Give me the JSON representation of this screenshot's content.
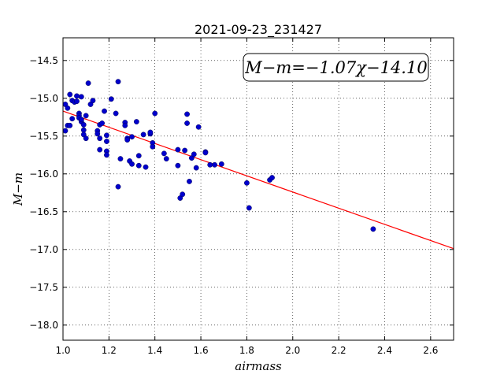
{
  "chart_data": {
    "type": "scatter",
    "title": "2021-09-23_231427",
    "xlabel": "airmass",
    "ylabel": "M−m",
    "xlim": [
      1.0,
      2.7
    ],
    "ylim": [
      -18.2,
      -14.2
    ],
    "y_inverted": true,
    "grid": true,
    "xticks": [
      "1.0",
      "1.2",
      "1.4",
      "1.6",
      "1.8",
      "2.0",
      "2.2",
      "2.4",
      "2.6"
    ],
    "yticks": [
      "−14.5",
      "−15.0",
      "−15.5",
      "−16.0",
      "−16.5",
      "−17.0",
      "−17.5",
      "−18.0"
    ],
    "annotation": "M−m=−1.07χ−14.10",
    "fit": {
      "slope": -1.07,
      "intercept": -14.1,
      "color": "#ff0000",
      "x_range": [
        1.0,
        2.7
      ]
    },
    "point_color": "#0000cc",
    "points": [
      [
        1.01,
        -15.08
      ],
      [
        1.02,
        -15.13
      ],
      [
        1.01,
        -15.43
      ],
      [
        1.02,
        -15.36
      ],
      [
        1.03,
        -15.36
      ],
      [
        1.03,
        -14.95
      ],
      [
        1.04,
        -15.03
      ],
      [
        1.04,
        -15.27
      ],
      [
        1.05,
        -15.05
      ],
      [
        1.06,
        -15.04
      ],
      [
        1.06,
        -14.97
      ],
      [
        1.07,
        -15.2
      ],
      [
        1.07,
        -15.23
      ],
      [
        1.07,
        -15.26
      ],
      [
        1.08,
        -15.31
      ],
      [
        1.08,
        -15.28
      ],
      [
        1.08,
        -14.98
      ],
      [
        1.09,
        -15.42
      ],
      [
        1.09,
        -15.35
      ],
      [
        1.09,
        -15.48
      ],
      [
        1.1,
        -15.53
      ],
      [
        1.1,
        -15.23
      ],
      [
        1.11,
        -14.8
      ],
      [
        1.12,
        -15.08
      ],
      [
        1.13,
        -15.03
      ],
      [
        1.15,
        -15.43
      ],
      [
        1.15,
        -15.47
      ],
      [
        1.16,
        -15.53
      ],
      [
        1.16,
        -15.68
      ],
      [
        1.16,
        -15.35
      ],
      [
        1.17,
        -15.33
      ],
      [
        1.18,
        -15.17
      ],
      [
        1.19,
        -15.49
      ],
      [
        1.19,
        -15.57
      ],
      [
        1.19,
        -15.7
      ],
      [
        1.19,
        -15.75
      ],
      [
        1.21,
        -15.01
      ],
      [
        1.23,
        -15.2
      ],
      [
        1.24,
        -14.78
      ],
      [
        1.24,
        -16.17
      ],
      [
        1.25,
        -15.8
      ],
      [
        1.27,
        -15.32
      ],
      [
        1.27,
        -15.36
      ],
      [
        1.28,
        -15.53
      ],
      [
        1.28,
        -15.55
      ],
      [
        1.29,
        -15.83
      ],
      [
        1.3,
        -15.51
      ],
      [
        1.3,
        -15.87
      ],
      [
        1.32,
        -15.31
      ],
      [
        1.33,
        -15.89
      ],
      [
        1.33,
        -15.76
      ],
      [
        1.35,
        -15.48
      ],
      [
        1.36,
        -15.91
      ],
      [
        1.38,
        -15.47
      ],
      [
        1.38,
        -15.45
      ],
      [
        1.39,
        -15.59
      ],
      [
        1.39,
        -15.64
      ],
      [
        1.4,
        -15.2
      ],
      [
        1.44,
        -15.73
      ],
      [
        1.45,
        -15.8
      ],
      [
        1.5,
        -15.68
      ],
      [
        1.5,
        -15.89
      ],
      [
        1.51,
        -16.32
      ],
      [
        1.52,
        -16.27
      ],
      [
        1.53,
        -15.69
      ],
      [
        1.54,
        -15.21
      ],
      [
        1.54,
        -15.33
      ],
      [
        1.55,
        -16.1
      ],
      [
        1.56,
        -15.79
      ],
      [
        1.57,
        -15.74
      ],
      [
        1.58,
        -15.92
      ],
      [
        1.59,
        -15.38
      ],
      [
        1.62,
        -15.71
      ],
      [
        1.62,
        -15.72
      ],
      [
        1.64,
        -15.88
      ],
      [
        1.66,
        -15.88
      ],
      [
        1.69,
        -15.87
      ],
      [
        1.8,
        -16.12
      ],
      [
        1.81,
        -16.45
      ],
      [
        1.9,
        -16.08
      ],
      [
        1.91,
        -16.05
      ],
      [
        2.35,
        -16.73
      ]
    ]
  }
}
